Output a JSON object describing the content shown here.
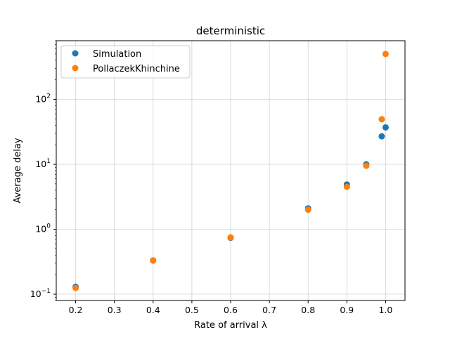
{
  "chart_data": {
    "type": "scatter",
    "title": "deterministic",
    "xlabel": "Rate of arrival λ",
    "ylabel": "Average delay",
    "xlim": [
      0.15,
      1.05
    ],
    "ylim": [
      0.08,
      800
    ],
    "yscale": "log",
    "grid": true,
    "legend_position": "top-left",
    "x_ticks": [
      0.2,
      0.3,
      0.4,
      0.5,
      0.6,
      0.7,
      0.8,
      0.9,
      1.0
    ],
    "x_tick_labels": [
      "0.2",
      "0.3",
      "0.4",
      "0.5",
      "0.6",
      "0.7",
      "0.8",
      "0.9",
      "1.0"
    ],
    "y_ticks": [
      0.1,
      1,
      10,
      100
    ],
    "y_tick_labels": [
      {
        "base": "10",
        "exp": "−1"
      },
      {
        "base": "10",
        "exp": "0"
      },
      {
        "base": "10",
        "exp": "1"
      },
      {
        "base": "10",
        "exp": "2"
      }
    ],
    "series": [
      {
        "name": "Simulation",
        "color": "#1f77b4",
        "points": [
          {
            "x": 0.2,
            "y": 0.13
          },
          {
            "x": 0.4,
            "y": 0.33
          },
          {
            "x": 0.6,
            "y": 0.74
          },
          {
            "x": 0.8,
            "y": 2.1
          },
          {
            "x": 0.9,
            "y": 4.9
          },
          {
            "x": 0.95,
            "y": 10.0
          },
          {
            "x": 0.99,
            "y": 27
          },
          {
            "x": 1.0,
            "y": 37
          }
        ]
      },
      {
        "name": "PollaczekKhinchine",
        "color": "#ff7f0e",
        "points": [
          {
            "x": 0.2,
            "y": 0.125
          },
          {
            "x": 0.4,
            "y": 0.333
          },
          {
            "x": 0.6,
            "y": 0.75
          },
          {
            "x": 0.8,
            "y": 2.0
          },
          {
            "x": 0.9,
            "y": 4.5
          },
          {
            "x": 0.95,
            "y": 9.5
          },
          {
            "x": 0.99,
            "y": 49.5
          },
          {
            "x": 1.0,
            "y": 500
          }
        ]
      }
    ]
  }
}
